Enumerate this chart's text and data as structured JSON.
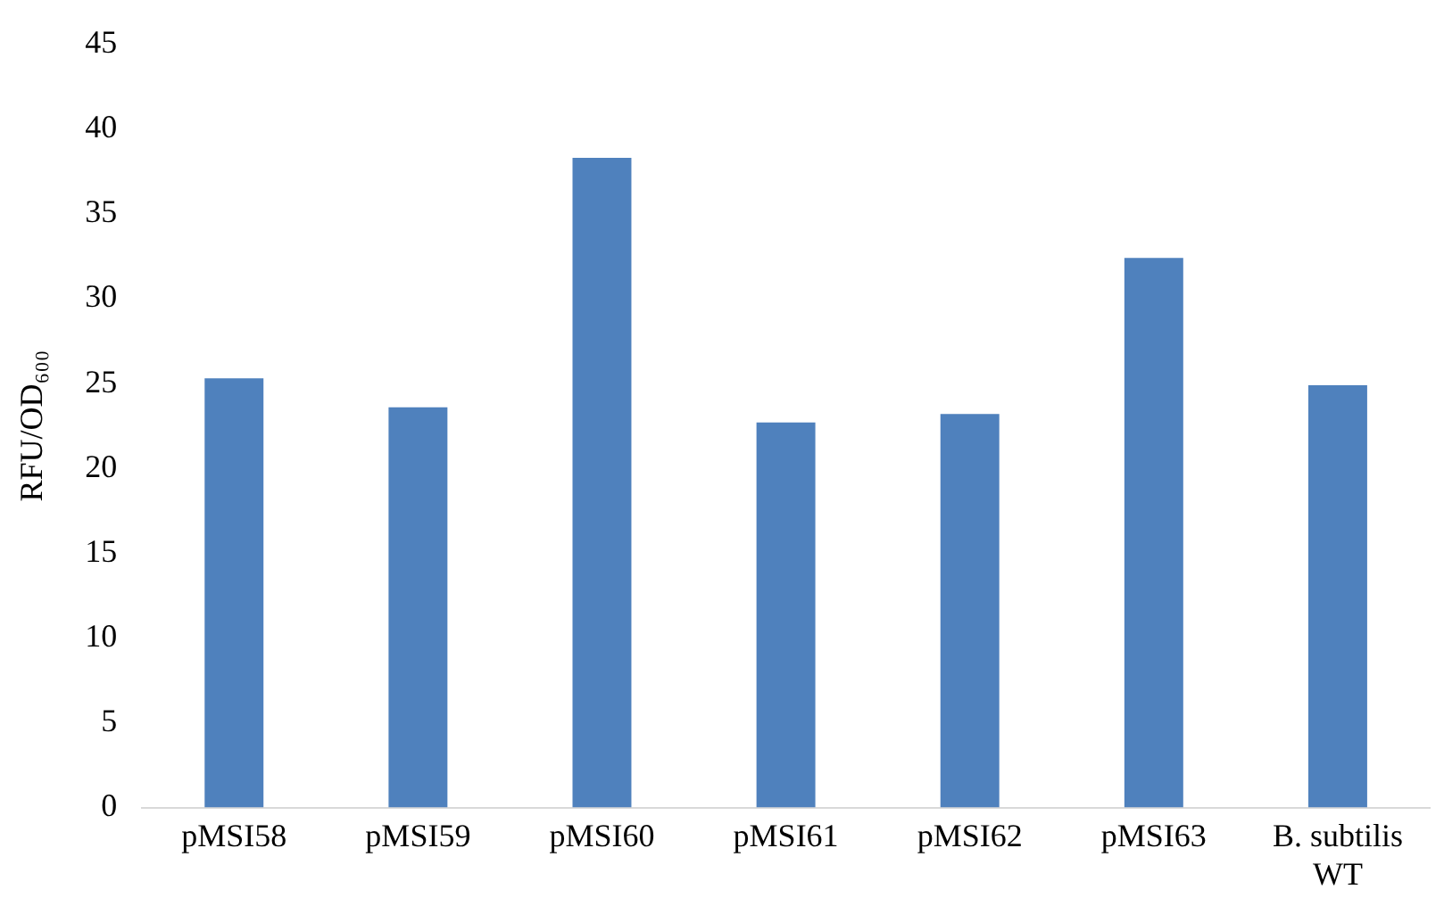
{
  "chart_data": {
    "type": "bar",
    "ylabel": "RFU/OD₆₀₀",
    "categories": [
      "pMSI58",
      "pMSI59",
      "pMSI60",
      "pMSI61",
      "pMSI62",
      "pMSI63",
      "B. subtilis WT"
    ],
    "values": [
      25.3,
      23.6,
      38.3,
      22.7,
      23.2,
      32.4,
      24.9
    ],
    "color": "#4f81bd",
    "ylim": [
      0,
      45
    ],
    "yticks": [
      0,
      5,
      10,
      15,
      20,
      25,
      30,
      35,
      40,
      45
    ],
    "grid": false,
    "legend": false
  }
}
